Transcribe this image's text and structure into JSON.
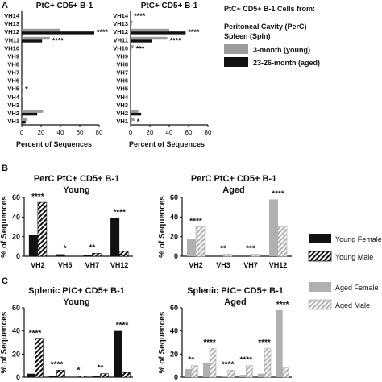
{
  "panel_labels": {
    "a": "A",
    "b": "B",
    "c": "C"
  },
  "legend_a": {
    "title_line1": "PtC+ CD5+ B-1 Cells from:",
    "title_line2": "Peritoneal Cavity (PerC)",
    "title_line3": "Spleen (Spln)",
    "items": [
      {
        "label": "3-month (young)",
        "color": "#9b9b9b"
      },
      {
        "label": "23-26-month (aged)",
        "color": "#111111"
      }
    ]
  },
  "legend_bc": {
    "items": [
      {
        "label": "Young Female",
        "style": "solid",
        "color": "#111111"
      },
      {
        "label": "Young Male",
        "style": "hatch",
        "color": "#111111"
      },
      {
        "label": "Aged Female",
        "style": "solid",
        "color": "#b0b0b0"
      },
      {
        "label": "Aged Male",
        "style": "hatch",
        "color": "#b0b0b0"
      }
    ]
  },
  "colors": {
    "young": "#9b9b9b",
    "aged": "#111111",
    "aged_light": "#b0b0b0"
  },
  "chart_data": [
    {
      "id": "a_left",
      "type": "bar",
      "orientation": "horizontal",
      "title": "PtC+ CD5+ B-1",
      "xlabel": "Percent of Sequences",
      "xlim": [
        0,
        80
      ],
      "xticks": [
        "0",
        "20",
        "40",
        "60",
        "80"
      ],
      "categories": [
        "VH1",
        "VH2",
        "VH3",
        "VH4",
        "VH5",
        "VH6",
        "VH7",
        "VH8",
        "VH9",
        "VH10",
        "VH11",
        "VH12",
        "VH13",
        "VH14"
      ],
      "series": [
        {
          "name": "3-month (young)",
          "values": [
            5,
            22,
            0,
            1,
            1,
            0,
            0,
            0,
            0,
            0,
            29,
            40,
            0,
            0
          ]
        },
        {
          "name": "23-26-month (aged)",
          "values": [
            4,
            16,
            0,
            0,
            0,
            0,
            0,
            0,
            0,
            0,
            21,
            75,
            0,
            0
          ]
        }
      ],
      "annotations": [
        {
          "category": "VH12",
          "text": "****"
        },
        {
          "category": "VH11",
          "text": "****"
        },
        {
          "category": "VH5",
          "text": "*"
        }
      ]
    },
    {
      "id": "a_right",
      "type": "bar",
      "orientation": "horizontal",
      "title": "PtC+ CD5+ B-1",
      "xlabel": "Percent of Sequences",
      "xlim": [
        0,
        80
      ],
      "xticks": [
        "0",
        "20",
        "40",
        "60",
        "80"
      ],
      "categories": [
        "VH1",
        "VH2",
        "VH3",
        "VH4",
        "VH5",
        "VH6",
        "VH7",
        "VH8",
        "VH9",
        "VH10",
        "VH11",
        "VH12",
        "VH13",
        "VH14"
      ],
      "series": [
        {
          "name": "3-month (young)",
          "values": [
            4,
            8,
            0,
            0,
            0,
            0,
            0,
            0,
            0,
            3,
            38,
            40,
            2,
            1
          ]
        },
        {
          "name": "23-26-month (aged)",
          "values": [
            1,
            11,
            0,
            0,
            0,
            0,
            0,
            0,
            0,
            1,
            22,
            57,
            1,
            0
          ]
        }
      ],
      "annotations": [
        {
          "category": "VH14",
          "text": "****"
        },
        {
          "category": "VH12",
          "text": "****"
        },
        {
          "category": "VH11",
          "text": "****"
        },
        {
          "category": "VH10",
          "text": "***"
        },
        {
          "category": "VH1",
          "text": "*"
        }
      ]
    },
    {
      "id": "b_left",
      "type": "bar",
      "title": "PerC PtC+ CD5+ B-1",
      "subtitle": "Young",
      "ylabel": "% of Sequences",
      "ylim": [
        0,
        60
      ],
      "yticks": [
        "0",
        "20",
        "40",
        "60"
      ],
      "categories": [
        "VH2",
        "VH5",
        "VH7",
        "VH12"
      ],
      "series": [
        {
          "name": "Young Female",
          "values": [
            22,
            2,
            1,
            39
          ]
        },
        {
          "name": "Young Male",
          "values": [
            55,
            0,
            3,
            5
          ]
        }
      ],
      "annotations": [
        "****",
        "*",
        "**",
        "****"
      ]
    },
    {
      "id": "b_right",
      "type": "bar",
      "title": "PerC PtC+ CD5+ B-1",
      "subtitle": "Aged",
      "ylabel": "% of Sequences",
      "ylim": [
        0,
        60
      ],
      "yticks": [
        "0",
        "20",
        "40",
        "60"
      ],
      "categories": [
        "VH2",
        "VH3",
        "VH7",
        "VH12"
      ],
      "series": [
        {
          "name": "Aged Female",
          "values": [
            18,
            0,
            0,
            58
          ]
        },
        {
          "name": "Aged Male",
          "values": [
            30,
            2,
            2,
            30
          ]
        }
      ],
      "annotations": [
        "****",
        "**",
        "***",
        "****"
      ]
    },
    {
      "id": "c_left",
      "type": "bar",
      "title": "Splenic PtC+ CD5+ B-1",
      "subtitle": "Young",
      "ylabel": "% of Sequences",
      "ylim": [
        0,
        60
      ],
      "yticks": [
        "0",
        "20",
        "40",
        "60"
      ],
      "categories": [
        "",
        "",
        "",
        "",
        ""
      ],
      "series": [
        {
          "name": "Young Female",
          "values": [
            3,
            1,
            0,
            1,
            40
          ]
        },
        {
          "name": "Young Male",
          "values": [
            33,
            6,
            1,
            3,
            4
          ]
        }
      ],
      "annotations": [
        "****",
        "****",
        "*",
        "**",
        "****"
      ]
    },
    {
      "id": "c_right",
      "type": "bar",
      "title": "Splenic PtC+ CD5+ B-1",
      "subtitle": "Aged",
      "ylabel": "% of Sequences",
      "ylim": [
        0,
        60
      ],
      "yticks": [
        "0",
        "20",
        "40",
        "60"
      ],
      "categories": [
        "",
        "",
        "",
        "",
        "",
        ""
      ],
      "series": [
        {
          "name": "Aged Female",
          "values": [
            7,
            12,
            1,
            2,
            3,
            58
          ]
        },
        {
          "name": "Aged Male",
          "values": [
            10,
            25,
            6,
            10,
            25,
            8
          ]
        }
      ],
      "annotations": [
        "**",
        "****",
        "****",
        "****",
        "****",
        "****"
      ]
    }
  ]
}
